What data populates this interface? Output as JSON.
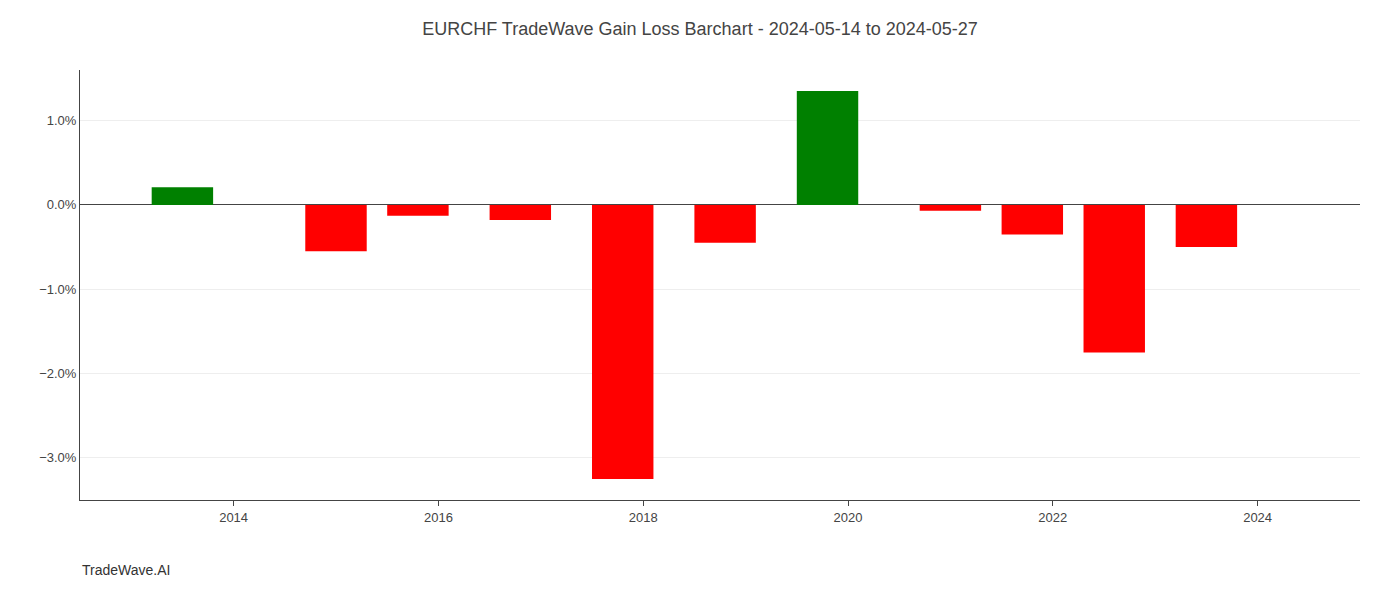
{
  "chart_data": {
    "type": "bar",
    "title": "EURCHF TradeWave Gain Loss Barchart - 2024-05-14 to 2024-05-27",
    "annotations": [
      "TradeWave.AI"
    ],
    "x": [
      2013.5,
      2015.0,
      2015.8,
      2016.8,
      2017.8,
      2018.8,
      2019.8,
      2021.0,
      2021.8,
      2022.6,
      2023.5
    ],
    "values": [
      0.21,
      -0.55,
      -0.13,
      -0.18,
      -3.25,
      -0.45,
      1.35,
      -0.07,
      -0.35,
      -1.75,
      -0.5
    ],
    "colors": [
      "#008000",
      "#ff0000",
      "#ff0000",
      "#ff0000",
      "#ff0000",
      "#ff0000",
      "#008000",
      "#ff0000",
      "#ff0000",
      "#ff0000",
      "#ff0000"
    ],
    "xlim": [
      2012.5,
      2025.0
    ],
    "xticks": [
      2014,
      2016,
      2018,
      2020,
      2022,
      2024
    ],
    "ylim": [
      -3.5,
      1.6
    ],
    "yticks": [
      {
        "value": -3.0,
        "label": "−3.0%"
      },
      {
        "value": -2.0,
        "label": "−2.0%"
      },
      {
        "value": -1.0,
        "label": "−1.0%"
      },
      {
        "value": 0.0,
        "label": "0.0%"
      },
      {
        "value": 1.0,
        "label": "1.0%"
      }
    ],
    "grid": true
  }
}
